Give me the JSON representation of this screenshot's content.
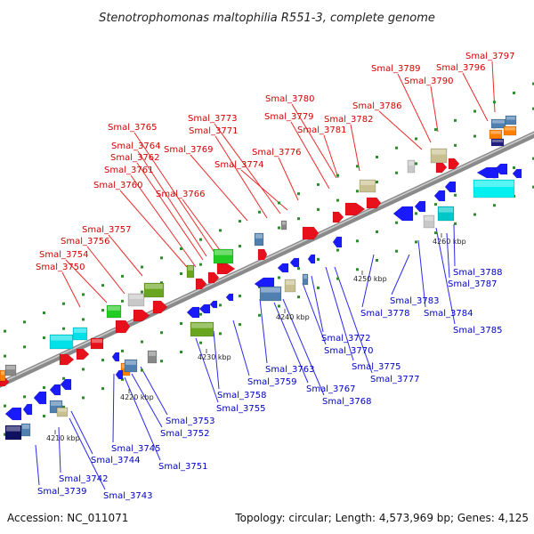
{
  "header": {
    "title": "Stenotrophomonas maltophilia R551-3, complete genome"
  },
  "footer": {
    "accession": "Accession: NC_011071",
    "summary": "Topology: circular; Length: 4,573,969 bp; Genes: 4,125"
  },
  "map": {
    "ticks": [
      "4210 kbp",
      "4220 kbp",
      "4230 kbp",
      "4240 kbp",
      "4250 kbp",
      "4260 kbp"
    ],
    "top_labels": [
      "Smal_3750",
      "Smal_3754",
      "Smal_3756",
      "Smal_3757",
      "Smal_3760",
      "Smal_3761",
      "Smal_3762",
      "Smal_3764",
      "Smal_3765",
      "Smal_3766",
      "Smal_3769",
      "Smal_3771",
      "Smal_3773",
      "Smal_3774",
      "Smal_3776",
      "Smal_3779",
      "Smal_3780",
      "Smal_3781",
      "Smal_3782",
      "Smal_3786",
      "Smal_3789",
      "Smal_3790",
      "Smal_3796",
      "Smal_3797"
    ],
    "bottom_labels": [
      "Smal_3739",
      "Smal_3742",
      "Smal_3743",
      "Smal_3744",
      "Smal_3745",
      "Smal_3751",
      "Smal_3752",
      "Smal_3753",
      "Smal_3755",
      "Smal_3758",
      "Smal_3759",
      "Smal_3763",
      "Smal_3767",
      "Smal_3768",
      "Smal_3770",
      "Smal_3772",
      "Smal_3775",
      "Smal_3777",
      "Smal_3778",
      "Smal_3783",
      "Smal_3784",
      "Smal_3785",
      "Smal_3787",
      "Smal_3788"
    ]
  }
}
